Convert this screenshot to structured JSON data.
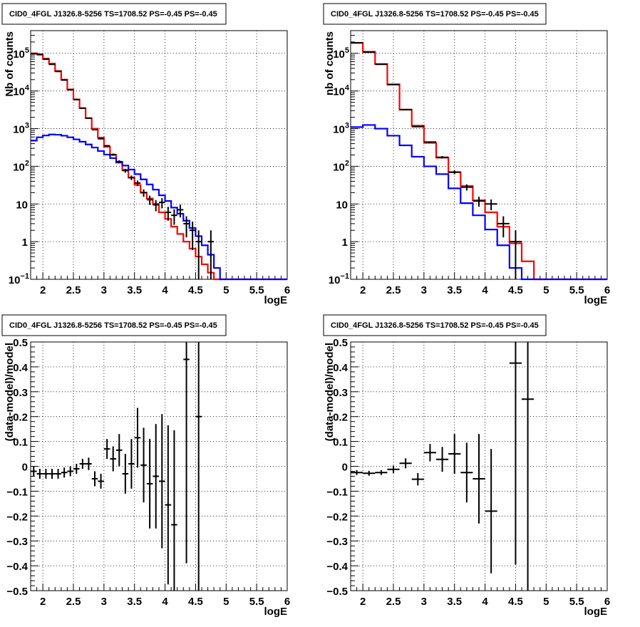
{
  "chart_data": [
    {
      "type": "line",
      "title": "CID0_4FGL J1326.8-5256 TS=1708.52 PS=-0.45 PS=-0.45",
      "xlabel": "logE",
      "ylabel": "Nb of counts",
      "xlim": [
        1.8,
        6.0
      ],
      "ylim": [
        0.1,
        400000
      ],
      "yscale": "log",
      "grid": true,
      "x_ticks": [
        "2",
        "2.5",
        "3",
        "3.5",
        "4",
        "4.5",
        "5",
        "5.5",
        "6"
      ],
      "y_ticks": [
        {
          "value": 0.1,
          "base": "10",
          "exp": "−1"
        },
        {
          "value": 1,
          "label": "1"
        },
        {
          "value": 10,
          "label": "10"
        },
        {
          "value": 100,
          "base": "10",
          "exp": "2"
        },
        {
          "value": 1000,
          "base": "10",
          "exp": "3"
        },
        {
          "value": 10000,
          "base": "10",
          "exp": "4"
        },
        {
          "value": 100000,
          "base": "10",
          "exp": "5"
        }
      ],
      "bin_edges": [
        1.8,
        1.9,
        2.0,
        2.1,
        2.2,
        2.3,
        2.4,
        2.5,
        2.6,
        2.7,
        2.8,
        2.9,
        3.0,
        3.1,
        3.2,
        3.3,
        3.4,
        3.5,
        3.6,
        3.7,
        3.8,
        3.9,
        4.0,
        4.1,
        4.2,
        4.3,
        4.4,
        4.5,
        4.6,
        4.7,
        4.8,
        4.9,
        5.0,
        5.1,
        5.2,
        5.3,
        5.4,
        5.5,
        5.6,
        5.7,
        5.8,
        5.9,
        6.0
      ],
      "series": [
        {
          "color": "#ff0000",
          "values": [
            100000,
            95000,
            72000,
            53000,
            34000,
            20000,
            11000,
            6000,
            3500,
            1900,
            1000,
            580,
            330,
            200,
            125,
            80,
            50,
            32,
            20,
            14,
            10,
            6,
            4,
            2.5,
            1.6,
            1.0,
            0.65,
            0.4,
            0.25,
            0.15,
            0.1,
            0.1,
            0.1,
            0.1,
            0.1,
            0.1,
            0.1,
            0.1,
            0.1,
            0.1,
            0.1,
            0.1
          ]
        },
        {
          "color": "#0000ff",
          "values": [
            480,
            590,
            660,
            700,
            690,
            650,
            590,
            520,
            450,
            380,
            315,
            255,
            205,
            165,
            130,
            105,
            82,
            62,
            45,
            33,
            24,
            17,
            12,
            8,
            5.5,
            3.6,
            2.3,
            1.4,
            0.8,
            0.45,
            0.2,
            0.1,
            0.1,
            0.1,
            0.1,
            0.1,
            0.1,
            0.1,
            0.1,
            0.1,
            0.1,
            0.1
          ]
        }
      ],
      "data_points": [
        {
          "x": 1.85,
          "y": 98000,
          "yerr": 300
        },
        {
          "x": 1.95,
          "y": 92000,
          "yerr": 300
        },
        {
          "x": 2.05,
          "y": 70000,
          "yerr": 260
        },
        {
          "x": 2.15,
          "y": 51000,
          "yerr": 220
        },
        {
          "x": 2.25,
          "y": 33000,
          "yerr": 180
        },
        {
          "x": 2.35,
          "y": 19500,
          "yerr": 140
        },
        {
          "x": 2.45,
          "y": 10800,
          "yerr": 104
        },
        {
          "x": 2.55,
          "y": 5900,
          "yerr": 77
        },
        {
          "x": 2.65,
          "y": 3500,
          "yerr": 59
        },
        {
          "x": 2.75,
          "y": 1900,
          "yerr": 44
        },
        {
          "x": 2.85,
          "y": 940,
          "yerr": 31
        },
        {
          "x": 2.95,
          "y": 540,
          "yerr": 23
        },
        {
          "x": 3.05,
          "y": 350,
          "yerr": 19
        },
        {
          "x": 3.15,
          "y": 205,
          "yerr": 14
        },
        {
          "x": 3.25,
          "y": 133,
          "yerr": 12
        },
        {
          "x": 3.35,
          "y": 77,
          "yerr": 9
        },
        {
          "x": 3.45,
          "y": 50,
          "yerr": 7
        },
        {
          "x": 3.55,
          "y": 36,
          "yerr": 6
        },
        {
          "x": 3.65,
          "y": 20,
          "yerr": 4.5
        },
        {
          "x": 3.75,
          "y": 13,
          "yerr": 3.6
        },
        {
          "x": 3.85,
          "y": 9.5,
          "yerr": 3.1
        },
        {
          "x": 3.95,
          "y": 11,
          "yerr": 3.3
        },
        {
          "x": 4.05,
          "y": 6,
          "yerr": 2.4
        },
        {
          "x": 4.15,
          "y": 5,
          "yerr": 2.2
        },
        {
          "x": 4.25,
          "y": 7,
          "yerr": 2.6
        },
        {
          "x": 4.35,
          "y": 3,
          "yerr": 1.7
        },
        {
          "x": 4.45,
          "y": 2,
          "yerr": 1.4
        },
        {
          "x": 4.55,
          "y": 1,
          "yerr": 1
        },
        {
          "x": 4.75,
          "y": 1,
          "yerr": 1
        }
      ]
    },
    {
      "type": "line",
      "title": "CID0_4FGL J1326.8-5256 TS=1708.52 PS=-0.45 PS=-0.45",
      "xlabel": "logE",
      "ylabel": "nb of counts",
      "xlim": [
        1.8,
        6.0
      ],
      "ylim": [
        0.1,
        400000
      ],
      "yscale": "log",
      "grid": true,
      "x_ticks": [
        "2",
        "2.5",
        "3",
        "3.5",
        "4",
        "4.5",
        "5",
        "5.5",
        "6"
      ],
      "y_ticks": [
        {
          "value": 0.1,
          "base": "10",
          "exp": "−1"
        },
        {
          "value": 1,
          "label": "1"
        },
        {
          "value": 10,
          "label": "10"
        },
        {
          "value": 100,
          "base": "10",
          "exp": "2"
        },
        {
          "value": 1000,
          "base": "10",
          "exp": "3"
        },
        {
          "value": 10000,
          "base": "10",
          "exp": "4"
        },
        {
          "value": 100000,
          "base": "10",
          "exp": "5"
        }
      ],
      "bin_edges": [
        1.8,
        2.0,
        2.2,
        2.4,
        2.6,
        2.8,
        3.0,
        3.2,
        3.4,
        3.6,
        3.8,
        4.0,
        4.2,
        4.4,
        4.6,
        4.8,
        5.0,
        5.2,
        5.4,
        5.6,
        5.8,
        6.0
      ],
      "series": [
        {
          "color": "#ff0000",
          "values": [
            190000,
            110000,
            52000,
            15000,
            3200,
            1200,
            420,
            170,
            70,
            30,
            12.5,
            6,
            2.5,
            0.9,
            0.3,
            0.1,
            0.1,
            0.1,
            0.1,
            0.1,
            0.1
          ]
        },
        {
          "color": "#0000ff",
          "values": [
            1100,
            1250,
            1000,
            650,
            360,
            180,
            100,
            62,
            26,
            10.5,
            5,
            2.1,
            0.8,
            0.2,
            0.1,
            0.1,
            0.1,
            0.1,
            0.1,
            0.1,
            0.1
          ]
        }
      ],
      "data_points": [
        {
          "x": 1.9,
          "y": 190000,
          "yerr": 400
        },
        {
          "x": 2.1,
          "y": 107000,
          "yerr": 320
        },
        {
          "x": 2.3,
          "y": 51000,
          "yerr": 220
        },
        {
          "x": 2.5,
          "y": 14800,
          "yerr": 120
        },
        {
          "x": 2.7,
          "y": 3200,
          "yerr": 57
        },
        {
          "x": 2.9,
          "y": 1130,
          "yerr": 34
        },
        {
          "x": 3.1,
          "y": 440,
          "yerr": 21
        },
        {
          "x": 3.3,
          "y": 174,
          "yerr": 13
        },
        {
          "x": 3.5,
          "y": 70,
          "yerr": 8.5
        },
        {
          "x": 3.7,
          "y": 28,
          "yerr": 5.3
        },
        {
          "x": 3.9,
          "y": 12,
          "yerr": 3.5
        },
        {
          "x": 4.1,
          "y": 10,
          "yerr": 3.2
        },
        {
          "x": 4.3,
          "y": 3,
          "yerr": 1.7
        },
        {
          "x": 4.5,
          "y": 1,
          "yerr": 1
        }
      ]
    },
    {
      "type": "scatter",
      "title": "CID0_4FGL J1326.8-5256 TS=1708.52 PS=-0.45 PS=-0.45",
      "xlabel": "logE",
      "ylabel": "(data-model)/model",
      "xlim": [
        1.8,
        6.0
      ],
      "ylim": [
        -0.5,
        0.5
      ],
      "grid": true,
      "x_ticks": [
        "2",
        "2.5",
        "3",
        "3.5",
        "4",
        "4.5",
        "5",
        "5.5",
        "6"
      ],
      "y_ticks": [
        "−0.5",
        "−0.4",
        "−0.3",
        "−0.2",
        "−0.1",
        "0",
        "0.1",
        "0.2",
        "0.3",
        "0.4",
        "0.5"
      ],
      "bin_width": 0.1,
      "points": [
        {
          "x": 1.85,
          "y": -0.02,
          "yerr": 0.02
        },
        {
          "x": 1.95,
          "y": -0.03,
          "yerr": 0.02
        },
        {
          "x": 2.05,
          "y": -0.03,
          "yerr": 0.02
        },
        {
          "x": 2.15,
          "y": -0.03,
          "yerr": 0.02
        },
        {
          "x": 2.25,
          "y": -0.03,
          "yerr": 0.02
        },
        {
          "x": 2.35,
          "y": -0.025,
          "yerr": 0.02
        },
        {
          "x": 2.45,
          "y": -0.02,
          "yerr": 0.02
        },
        {
          "x": 2.55,
          "y": -0.01,
          "yerr": 0.02
        },
        {
          "x": 2.65,
          "y": 0.01,
          "yerr": 0.02
        },
        {
          "x": 2.75,
          "y": 0.01,
          "yerr": 0.025
        },
        {
          "x": 2.85,
          "y": -0.05,
          "yerr": 0.03
        },
        {
          "x": 2.95,
          "y": -0.06,
          "yerr": 0.03
        },
        {
          "x": 3.05,
          "y": 0.07,
          "yerr": 0.04
        },
        {
          "x": 3.15,
          "y": 0.03,
          "yerr": 0.05
        },
        {
          "x": 3.25,
          "y": 0.065,
          "yerr": 0.065
        },
        {
          "x": 3.35,
          "y": -0.03,
          "yerr": 0.08
        },
        {
          "x": 3.45,
          "y": 0.01,
          "yerr": 0.1
        },
        {
          "x": 3.55,
          "y": 0.115,
          "yerr": 0.12
        },
        {
          "x": 3.65,
          "y": 0.005,
          "yerr": 0.15
        },
        {
          "x": 3.75,
          "y": -0.07,
          "yerr": 0.18
        },
        {
          "x": 3.85,
          "y": -0.04,
          "yerr": 0.21
        },
        {
          "x": 3.95,
          "y": -0.06,
          "yerr": 0.27
        },
        {
          "x": 4.05,
          "y": -0.155,
          "yerr": 0.32
        },
        {
          "x": 4.15,
          "y": -0.235,
          "yerr": 0.38
        },
        {
          "x": 4.35,
          "y": 0.43,
          "yerr": 0.82
        },
        {
          "x": 4.55,
          "y": 0.2,
          "yerr": 1.0
        }
      ]
    },
    {
      "type": "scatter",
      "title": "CID0_4FGL J1326.8-5256 TS=1708.52 PS=-0.45 PS=-0.45",
      "xlabel": "logE",
      "ylabel": "(data-model)/model",
      "xlim": [
        1.8,
        6.0
      ],
      "ylim": [
        -0.5,
        0.5
      ],
      "grid": true,
      "x_ticks": [
        "2",
        "2.5",
        "3",
        "3.5",
        "4",
        "4.5",
        "5",
        "5.5",
        "6"
      ],
      "y_ticks": [
        "−0.5",
        "−0.4",
        "−0.3",
        "−0.2",
        "−0.1",
        "0",
        "0.1",
        "0.2",
        "0.3",
        "0.4",
        "0.5"
      ],
      "bin_width": 0.2,
      "points": [
        {
          "x": 1.9,
          "y": -0.025,
          "yerr": 0.01
        },
        {
          "x": 2.1,
          "y": -0.028,
          "yerr": 0.01
        },
        {
          "x": 2.3,
          "y": -0.025,
          "yerr": 0.01
        },
        {
          "x": 2.5,
          "y": -0.012,
          "yerr": 0.015
        },
        {
          "x": 2.7,
          "y": 0.012,
          "yerr": 0.02
        },
        {
          "x": 2.9,
          "y": -0.052,
          "yerr": 0.025
        },
        {
          "x": 3.1,
          "y": 0.055,
          "yerr": 0.035
        },
        {
          "x": 3.3,
          "y": 0.028,
          "yerr": 0.05
        },
        {
          "x": 3.5,
          "y": 0.05,
          "yerr": 0.08
        },
        {
          "x": 3.7,
          "y": -0.025,
          "yerr": 0.12
        },
        {
          "x": 3.9,
          "y": -0.05,
          "yerr": 0.18
        },
        {
          "x": 4.1,
          "y": -0.18,
          "yerr": 0.25
        },
        {
          "x": 4.5,
          "y": 0.415,
          "yerr": 0.81
        },
        {
          "x": 4.7,
          "y": 0.27,
          "yerr": 1.0
        }
      ]
    }
  ]
}
